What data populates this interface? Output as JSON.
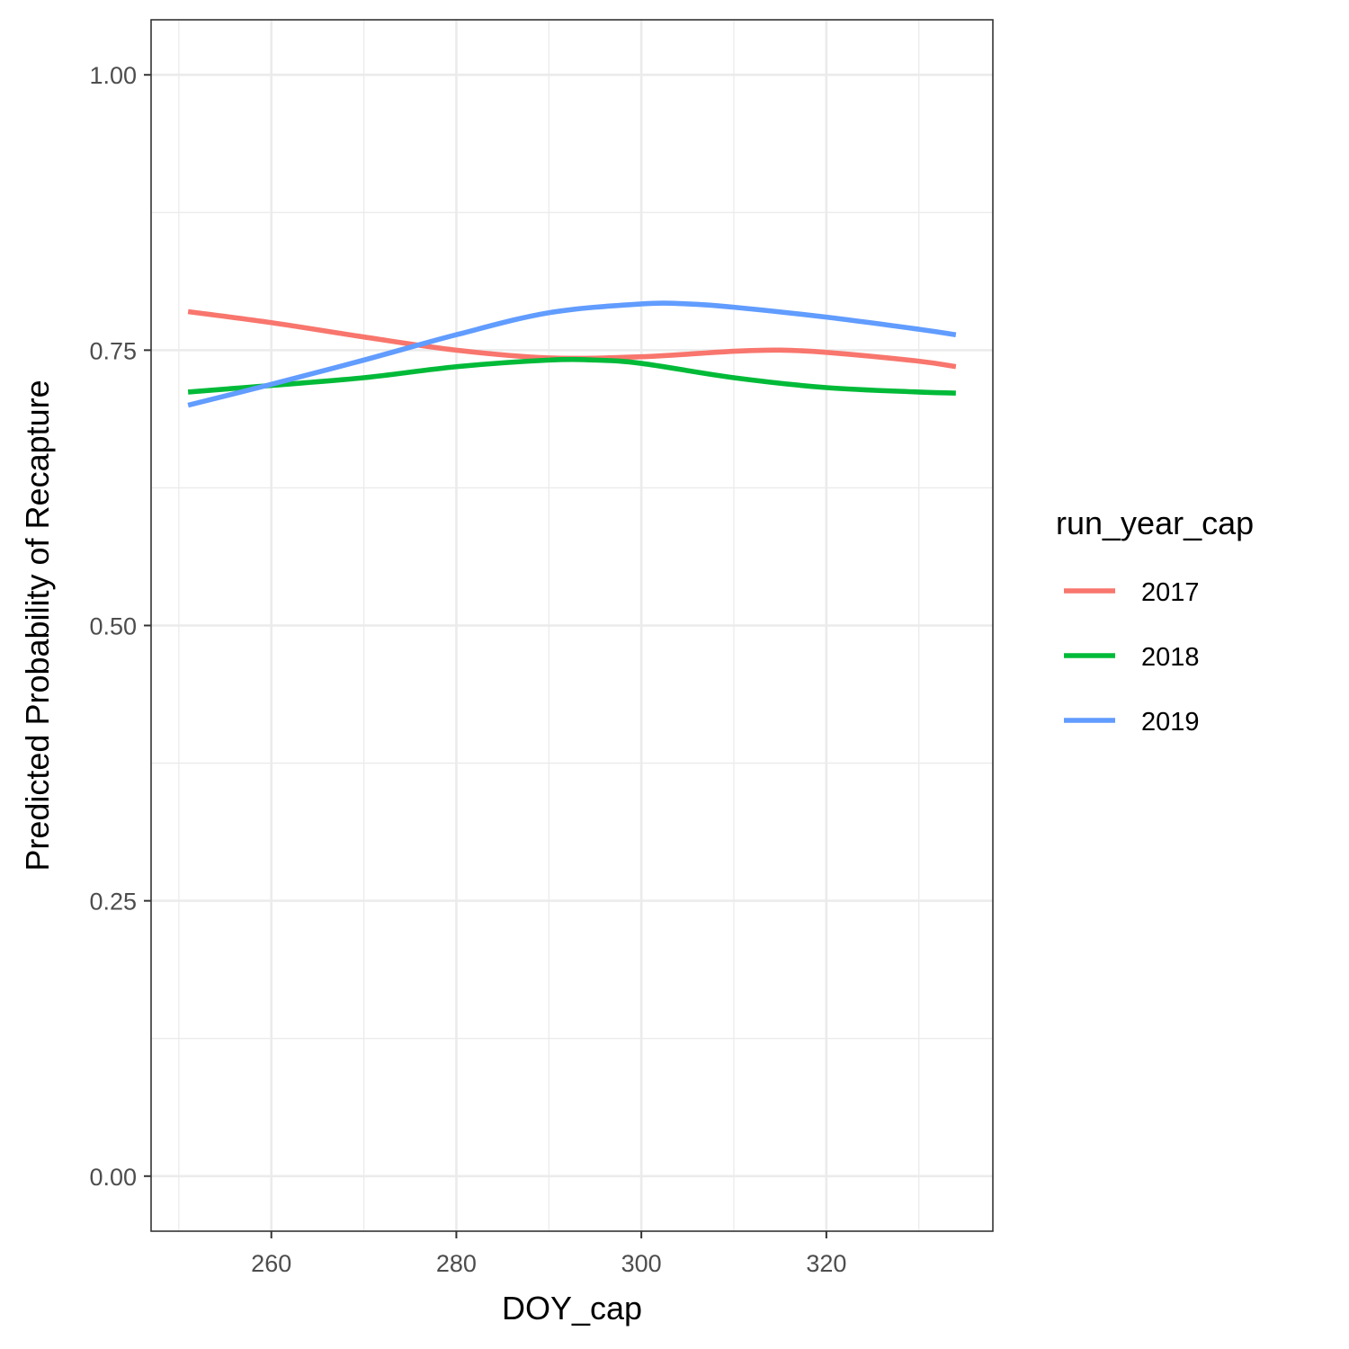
{
  "chart_data": {
    "type": "line",
    "title": "",
    "xlabel": "DOY_cap",
    "ylabel": "Predicted Probability of Recapture",
    "xlim": [
      247,
      338
    ],
    "ylim": [
      -0.05,
      1.05
    ],
    "x_ticks": [
      260,
      280,
      300,
      320
    ],
    "x_tick_labels": [
      "260",
      "280",
      "300",
      "320"
    ],
    "y_ticks": [
      0,
      0.25,
      0.5,
      0.75,
      1
    ],
    "y_tick_labels": [
      "0.00",
      "0.25",
      "0.50",
      "0.75",
      "1.00"
    ],
    "grid": true,
    "legend": {
      "title": "run_year_cap",
      "placement": "right"
    },
    "series": [
      {
        "name": "2017",
        "color": "#F8766D",
        "x": [
          251,
          260,
          270,
          280,
          290,
          300,
          310,
          315,
          320,
          330,
          334
        ],
        "y": [
          0.785,
          0.775,
          0.762,
          0.75,
          0.743,
          0.744,
          0.749,
          0.75,
          0.748,
          0.74,
          0.735
        ]
      },
      {
        "name": "2018",
        "color": "#00BA38",
        "x": [
          251,
          260,
          270,
          280,
          290,
          295,
          300,
          310,
          320,
          330,
          334
        ],
        "y": [
          0.712,
          0.718,
          0.725,
          0.735,
          0.741,
          0.741,
          0.738,
          0.725,
          0.716,
          0.712,
          0.711
        ]
      },
      {
        "name": "2019",
        "color": "#619CFF",
        "x": [
          251,
          260,
          270,
          280,
          290,
          300,
          305,
          310,
          320,
          330,
          334
        ],
        "y": [
          0.7,
          0.719,
          0.741,
          0.764,
          0.784,
          0.792,
          0.792,
          0.789,
          0.78,
          0.769,
          0.764
        ]
      }
    ]
  }
}
